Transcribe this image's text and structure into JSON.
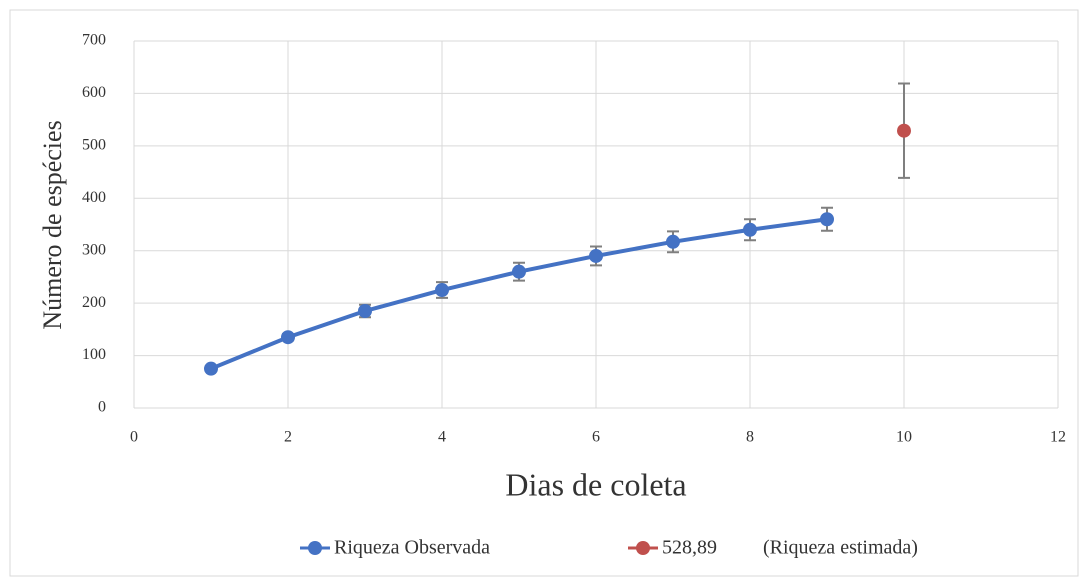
{
  "chart_data": {
    "type": "line",
    "xlabel": "Dias de coleta",
    "ylabel": "Número de espécies",
    "series": [
      {
        "name": "Riqueza Observada",
        "color": "#4472c4",
        "x": [
          1,
          2,
          3,
          4,
          5,
          6,
          7,
          8,
          9
        ],
        "values": [
          75,
          135,
          185,
          225,
          260,
          290,
          317,
          340,
          360
        ],
        "errors": [
          5,
          6,
          12,
          15,
          17,
          18,
          20,
          20,
          22
        ]
      },
      {
        "name": "528,89",
        "color": "#c0504d",
        "x": [
          10
        ],
        "values": [
          528.89
        ],
        "errors": [
          90
        ]
      }
    ],
    "annotation": "(Riqueza estimada)",
    "xlim": [
      0,
      12
    ],
    "xticks": [
      0,
      2,
      4,
      6,
      8,
      10,
      12
    ],
    "ylim": [
      0,
      700
    ],
    "yticks": [
      0,
      100,
      200,
      300,
      400,
      500,
      600,
      700
    ],
    "grid": true,
    "legend": "bottom",
    "error_color": "#7f7f7f"
  }
}
